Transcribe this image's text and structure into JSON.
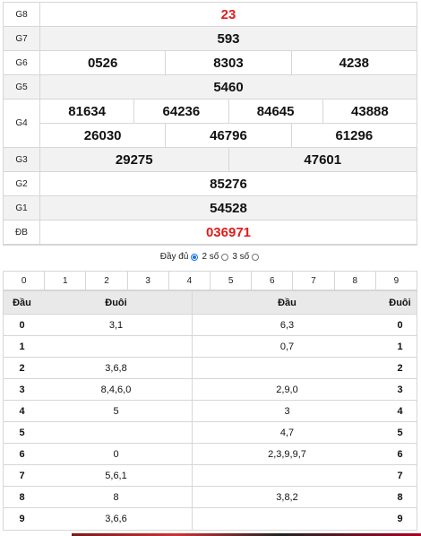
{
  "prizes": [
    {
      "label": "G8",
      "values": [
        "23"
      ],
      "red": true,
      "alt": false
    },
    {
      "label": "G7",
      "values": [
        "593"
      ],
      "red": false,
      "alt": true
    },
    {
      "label": "G6",
      "values": [
        "0526",
        "8303",
        "4238"
      ],
      "red": false,
      "alt": false
    },
    {
      "label": "G5",
      "values": [
        "5460"
      ],
      "red": false,
      "alt": true
    },
    {
      "label": "G4",
      "lines": [
        [
          "81634",
          "64236",
          "84645",
          "43888"
        ],
        [
          "26030",
          "46796",
          "61296"
        ]
      ],
      "red": false,
      "alt": false
    },
    {
      "label": "G3",
      "values": [
        "29275",
        "47601"
      ],
      "red": false,
      "alt": true
    },
    {
      "label": "G2",
      "values": [
        "85276"
      ],
      "red": false,
      "alt": false
    },
    {
      "label": "G1",
      "values": [
        "54528"
      ],
      "red": false,
      "alt": true
    },
    {
      "label": "ĐB",
      "values": [
        "036971"
      ],
      "red": true,
      "alt": false
    }
  ],
  "toggle": {
    "full": "Đầy đủ",
    "two": "2 số",
    "three": "3 số",
    "selected": "full"
  },
  "digits": [
    "0",
    "1",
    "2",
    "3",
    "4",
    "5",
    "6",
    "7",
    "8",
    "9"
  ],
  "loto": {
    "headers": {
      "head1": "Đầu",
      "tail1": "Đuôi",
      "head2": "Đầu",
      "tail2": "Đuôi"
    },
    "rows": [
      {
        "k1": "0",
        "v1": "3,1",
        "v2": "6,3",
        "k2": "0"
      },
      {
        "k1": "1",
        "v1": "",
        "v2": "0,7",
        "k2": "1"
      },
      {
        "k1": "2",
        "v1": "3,6,8",
        "v2": "",
        "k2": "2"
      },
      {
        "k1": "3",
        "v1": "8,4,6,0",
        "v2": "2,9,0",
        "k2": "3"
      },
      {
        "k1": "4",
        "v1": "5",
        "v2": "3",
        "k2": "4"
      },
      {
        "k1": "5",
        "v1": "",
        "v2": "4,7",
        "k2": "5"
      },
      {
        "k1": "6",
        "v1": "0",
        "v2": "2,3,9,9,7",
        "k2": "6"
      },
      {
        "k1": "7",
        "v1": "5,6,1",
        "v2": "",
        "k2": "7"
      },
      {
        "k1": "8",
        "v1": "8",
        "v2": "3,8,2",
        "k2": "8"
      },
      {
        "k1": "9",
        "v1": "3,6,6",
        "v2": "",
        "k2": "9"
      }
    ]
  }
}
